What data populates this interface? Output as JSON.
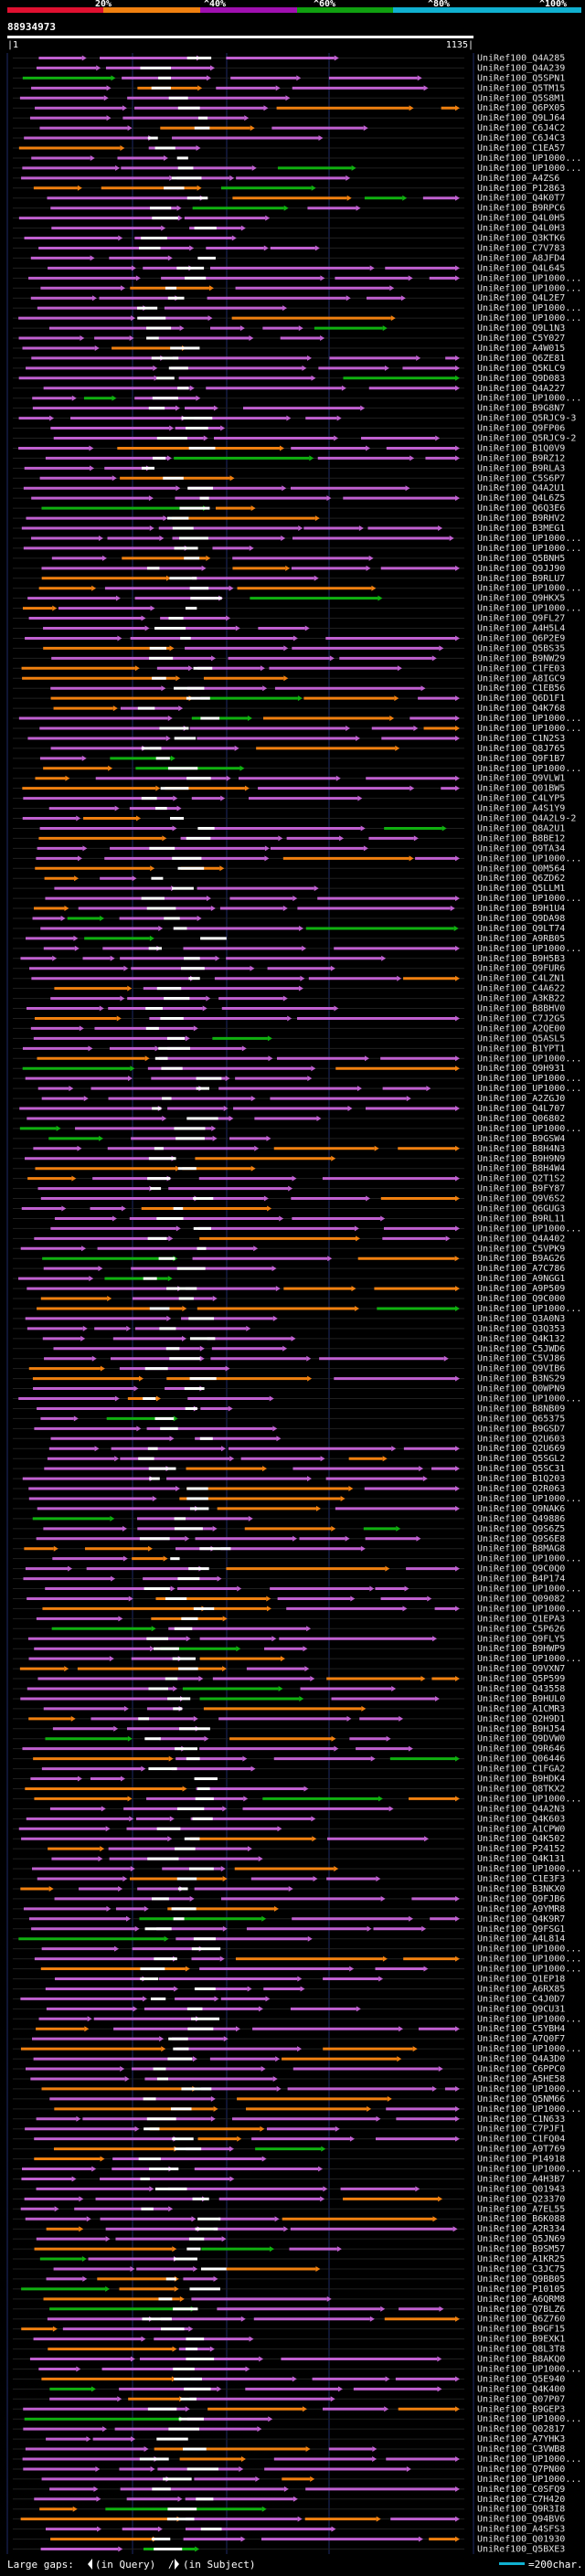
{
  "title_id": "88934973",
  "identity_scale": {
    "labels": [
      "20%",
      "^40%",
      "^60%",
      "^80%",
      "^100%"
    ],
    "colors": [
      "#e01030",
      "#f08010",
      "#a010b0",
      "#10a010",
      "#10b0d0"
    ]
  },
  "ruler": {
    "start": "|1",
    "end": "1135|"
  },
  "hits": [
    "UniRef100_Q4A285",
    "UniRef100_Q4A239",
    "UniRef100_Q5SPN1",
    "UniRef100_Q5TM15",
    "UniRef100_Q5S8M1",
    "UniRef100_Q6PX05",
    "UniRef100_Q9LJ64",
    "UniRef100_C6J4C2",
    "UniRef100_C6J4C3",
    "UniRef100_C1EA57",
    "UniRef100_UP1000...",
    "UniRef100_UP1000...",
    "UniRef100_A4ZS6",
    "UniRef100_P12863",
    "UniRef100_Q4K0T7",
    "UniRef100_B9RPC6",
    "UniRef100_Q4L0H5",
    "UniRef100_Q4L0H3",
    "UniRef100_Q3KTK6",
    "UniRef100_C7V783",
    "UniRef100_A8JFD4",
    "UniRef100_Q4L645",
    "UniRef100_UP1000...",
    "UniRef100_UP1000...",
    "UniRef100_Q4L2E7",
    "UniRef100_UP1000...",
    "UniRef100_UP1000...",
    "UniRef100_Q9L1N3",
    "UniRef100_C5Y027",
    "UniRef100_A4W015",
    "UniRef100_Q6ZE81",
    "UniRef100_Q5KLC9",
    "UniRef100_Q9D083",
    "UniRef100_Q4A227",
    "UniRef100_UP1000...",
    "UniRef100_B9G8N7",
    "UniRef100_Q5RJC9-3",
    "UniRef100_Q9FP06",
    "UniRef100_Q5RJC9-2",
    "UniRef100_B1Q0V9",
    "UniRef100_B9RZ12",
    "UniRef100_B9RLA3",
    "UniRef100_C5S6P7",
    "UniRef100_Q4A2U1",
    "UniRef100_Q4L6Z5",
    "UniRef100_Q6Q3E6",
    "UniRef100_B9RHV2",
    "UniRef100_B3MEG1",
    "UniRef100_UP1000...",
    "UniRef100_UP1000...",
    "UniRef100_Q5BNH5",
    "UniRef100_Q9JJ90",
    "UniRef100_B9RLU7",
    "UniRef100_UP1000...",
    "UniRef100_Q9HKX5",
    "UniRef100_UP1000...",
    "UniRef100_Q9FL27",
    "UniRef100_A4H5L4",
    "UniRef100_Q6P2E9",
    "UniRef100_Q5BS35",
    "UniRef100_B9NW29",
    "UniRef100_C1FE03",
    "UniRef100_A8IGC9",
    "UniRef100_C1EB56",
    "UniRef100_Q6D1F1",
    "UniRef100_Q4K768",
    "UniRef100_UP1000...",
    "UniRef100_UP1000...",
    "UniRef100_C1N2S3",
    "UniRef100_Q8J765",
    "UniRef100_Q9F1B7",
    "UniRef100_UP1000...",
    "UniRef100_Q9VLW1",
    "UniRef100_Q01BW5",
    "UniRef100_C4LYP5",
    "UniRef100_A4S1Y9",
    "UniRef100_Q4A2L9-2",
    "UniRef100_Q8A2U1",
    "UniRef100_B8BE12",
    "UniRef100_Q9TA34",
    "UniRef100_UP1000...",
    "UniRef100_Q0M564",
    "UniRef100_Q6ZD62",
    "UniRef100_Q5LLM1",
    "UniRef100_UP1000...",
    "UniRef100_B9H1U4",
    "UniRef100_Q9DA98",
    "UniRef100_Q9LT74",
    "UniRef100_A9RB05",
    "UniRef100_UP1000...",
    "UniRef100_B9H5B3",
    "UniRef100_Q9FUR6",
    "UniRef100_C4LZN1",
    "UniRef100_C4A622",
    "UniRef100_A3KB22",
    "UniRef100_B8BHV0",
    "UniRef100_C7J2G5",
    "UniRef100_A2QE00",
    "UniRef100_Q5ASL5",
    "UniRef100_B1YPT1",
    "UniRef100_UP1000...",
    "UniRef100_Q9H931",
    "UniRef100_UP1000...",
    "UniRef100_UP1000...",
    "UniRef100_A2ZGJ0",
    "UniRef100_Q4L707",
    "UniRef100_Q06802",
    "UniRef100_UP1000...",
    "UniRef100_B9GSW4",
    "UniRef100_B8H4N3",
    "UniRef100_B9H9N9",
    "UniRef100_B8H4W4",
    "UniRef100_Q2T1S2",
    "UniRef100_B9FY87",
    "UniRef100_Q9V6S2",
    "UniRef100_Q6GUG3",
    "UniRef100_B9RL11",
    "UniRef100_UP1000...",
    "UniRef100_Q4A402",
    "UniRef100_C5VPK9",
    "UniRef100_B9AG26",
    "UniRef100_A7C786",
    "UniRef100_A9NGG1",
    "UniRef100_A9P509",
    "UniRef100_Q9C000",
    "UniRef100_UP1000...",
    "UniRef100_Q3A0N3",
    "UniRef100_Q3Q353",
    "UniRef100_Q4K132",
    "UniRef100_C5JWD6",
    "UniRef100_C5VJ86",
    "UniRef100_Q9VIB6",
    "UniRef100_B3NS29",
    "UniRef100_Q0WPN9",
    "UniRef100_UP1000...",
    "UniRef100_B8NB09",
    "UniRef100_Q65375",
    "UniRef100_B9GSD7",
    "UniRef100_Q2U603",
    "UniRef100_Q2U669",
    "UniRef100_Q5SGL2",
    "UniRef100_Q5SC31",
    "UniRef100_B1Q203",
    "UniRef100_Q2R063",
    "UniRef100_UP1000...",
    "UniRef100_Q9NAK6",
    "UniRef100_Q49886",
    "UniRef100_Q9S6Z5",
    "UniRef100_Q9S6E8",
    "UniRef100_B8MAG8",
    "UniRef100_UP1000...",
    "UniRef100_Q9C0Q0",
    "UniRef100_B4P174",
    "UniRef100_UP1000...",
    "UniRef100_Q09082",
    "UniRef100_UP1000...",
    "UniRef100_Q1EPA3",
    "UniRef100_C5P626",
    "UniRef100_Q9FLY5",
    "UniRef100_B9HWP9",
    "UniRef100_UP1000...",
    "UniRef100_Q9VXN7",
    "UniRef100_Q5P599",
    "UniRef100_Q43558",
    "UniRef100_B9HUL0",
    "UniRef100_A1CMR3",
    "UniRef100_Q2H9D1",
    "UniRef100_B9HJ54",
    "UniRef100_Q9DVW0",
    "UniRef100_Q9R646",
    "UniRef100_Q06446",
    "UniRef100_C1FGA2",
    "UniRef100_B9HDK4",
    "UniRef100_Q8TKX2",
    "UniRef100_UP1000...",
    "UniRef100_Q4A2N3",
    "UniRef100_Q4K603",
    "UniRef100_A1CPW0",
    "UniRef100_Q4K502",
    "UniRef100_P24152",
    "UniRef100_Q4K131",
    "UniRef100_UP1000...",
    "UniRef100_C1E3F3",
    "UniRef100_B3NKX0",
    "UniRef100_Q9FJB6",
    "UniRef100_A9YMR8",
    "UniRef100_Q4K9R7",
    "UniRef100_Q9FSG1",
    "UniRef100_A4L814",
    "UniRef100_UP1000...",
    "UniRef100_UP1000...",
    "UniRef100_UP1000...",
    "UniRef100_Q1EP18",
    "UniRef100_A6RX85",
    "UniRef100_C4J0D7",
    "UniRef100_Q9CU31",
    "UniRef100_UP1000...",
    "UniRef100_C5YBH4",
    "UniRef100_A7Q0F7",
    "UniRef100_UP1000...",
    "UniRef100_Q4A3D0",
    "UniRef100_C6PPC0",
    "UniRef100_A5HE58",
    "UniRef100_UP1000...",
    "UniRef100_Q5NM66",
    "UniRef100_UP1000...",
    "UniRef100_C1N633",
    "UniRef100_C7PJF1",
    "UniRef100_C1FQ04",
    "UniRef100_A9T769",
    "UniRef100_P14918",
    "UniRef100_UP1000...",
    "UniRef100_A4H3B7",
    "UniRef100_Q01943",
    "UniRef100_Q23370",
    "UniRef100_A7EL55",
    "UniRef100_B6K088",
    "UniRef100_A2R334",
    "UniRef100_Q5JN69",
    "UniRef100_B9SM57",
    "UniRef100_A1KR25",
    "UniRef100_C3JC75",
    "UniRef100_Q9BB05",
    "UniRef100_P10105",
    "UniRef100_A6QRM8",
    "UniRef100_Q7BLZ6",
    "UniRef100_Q6Z760",
    "UniRef100_B9GF15",
    "UniRef100_B9EXK1",
    "UniRef100_Q8L3T8",
    "UniRef100_B8AKQ0",
    "UniRef100_UP1000...",
    "UniRef100_Q5E940",
    "UniRef100_Q4K400",
    "UniRef100_Q07P07",
    "UniRef100_B9GEP3",
    "UniRef100_UP1000...",
    "UniRef100_Q02817",
    "UniRef100_A7YHK3",
    "UniRef100_C3VWB8",
    "UniRef100_UP1000...",
    "UniRef100_Q7PN00",
    "UniRef100_UP1000...",
    "UniRef100_C0SFQ9",
    "UniRef100_C7H420",
    "UniRef100_Q9R3I8",
    "UniRef100_Q94BV6",
    "UniRef100_A4SFS3",
    "UniRef100_Q01930",
    "UniRef100_Q5BXE3"
  ],
  "footer": {
    "large_gaps_label": "Large gaps:",
    "query_label": "(in Query)",
    "subject_label": "(in Subject)",
    "scale_label": "=200char."
  }
}
